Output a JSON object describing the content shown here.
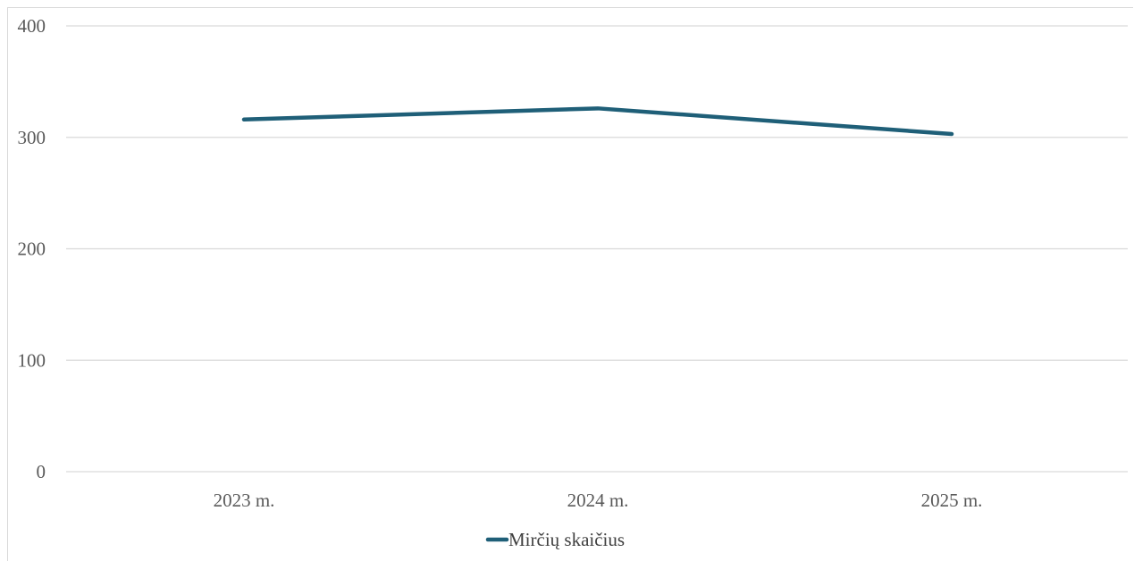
{
  "chart_data": {
    "type": "line",
    "title": "",
    "xlabel": "",
    "ylabel": "",
    "categories": [
      "2023 m.",
      "2024 m.",
      "2025 m."
    ],
    "series": [
      {
        "name": "Mirčių skaičius",
        "values": [
          316,
          326,
          303
        ],
        "color": "#1f5f78"
      }
    ],
    "ylim": [
      0,
      400
    ],
    "yticks": [
      0,
      100,
      200,
      300,
      400
    ],
    "yticklabels": [
      "0",
      "100",
      "200",
      "300",
      "400"
    ],
    "grid": true,
    "gridColor": "#d9d9d9",
    "legend": "bottom-center"
  }
}
